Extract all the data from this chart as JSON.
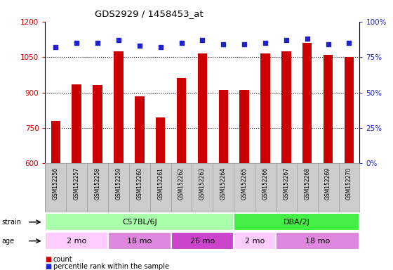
{
  "title": "GDS2929 / 1458453_at",
  "samples": [
    "GSM152256",
    "GSM152257",
    "GSM152258",
    "GSM152259",
    "GSM152260",
    "GSM152261",
    "GSM152262",
    "GSM152263",
    "GSM152264",
    "GSM152265",
    "GSM152266",
    "GSM152267",
    "GSM152268",
    "GSM152269",
    "GSM152270"
  ],
  "counts": [
    780,
    935,
    930,
    1075,
    885,
    795,
    960,
    1065,
    910,
    910,
    1065,
    1075,
    1110,
    1060,
    1050
  ],
  "percentile_ranks": [
    82,
    85,
    85,
    87,
    83,
    82,
    85,
    87,
    84,
    84,
    85,
    87,
    88,
    84,
    85
  ],
  "ylim_left": [
    600,
    1200
  ],
  "ylim_right": [
    0,
    100
  ],
  "yticks_left": [
    600,
    750,
    900,
    1050,
    1200
  ],
  "yticks_right": [
    0,
    25,
    50,
    75,
    100
  ],
  "bar_color": "#cc0000",
  "dot_color": "#2222cc",
  "strain_groups": [
    {
      "label": "C57BL/6J",
      "start": 0,
      "end": 9,
      "color": "#aaffaa"
    },
    {
      "label": "DBA/2J",
      "start": 9,
      "end": 15,
      "color": "#44ee44"
    }
  ],
  "age_groups": [
    {
      "label": "2 mo",
      "start": 0,
      "end": 3,
      "color": "#ffccff"
    },
    {
      "label": "18 mo",
      "start": 3,
      "end": 6,
      "color": "#dd88dd"
    },
    {
      "label": "26 mo",
      "start": 6,
      "end": 9,
      "color": "#cc44cc"
    },
    {
      "label": "2 mo",
      "start": 9,
      "end": 11,
      "color": "#ffccff"
    },
    {
      "label": "18 mo",
      "start": 11,
      "end": 15,
      "color": "#dd88dd"
    }
  ],
  "legend_count_label": "count",
  "legend_pct_label": "percentile rank within the sample",
  "background_color": "#ffffff",
  "left_axis_color": "#cc0000",
  "right_axis_color": "#2222cc",
  "label_bg_color": "#cccccc",
  "label_line_color": "#999999"
}
